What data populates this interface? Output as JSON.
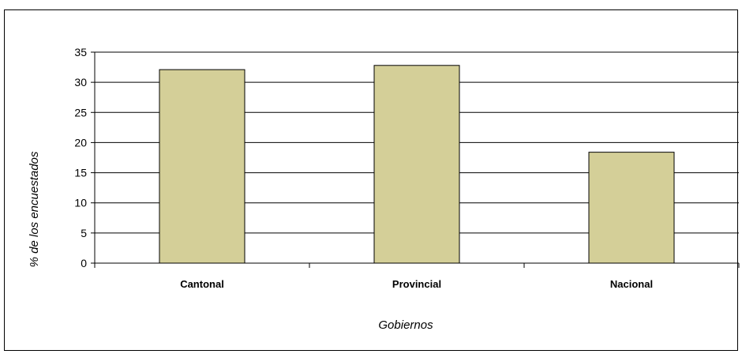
{
  "chart_data": {
    "type": "bar",
    "categories": [
      "Cantonal",
      "Provincial",
      "Nacional"
    ],
    "values": [
      32.1,
      32.8,
      18.4
    ],
    "title": "",
    "xlabel": "Gobiernos",
    "ylabel": "% de los encuestados",
    "ylim": [
      0,
      35
    ],
    "yticks": [
      "0",
      "5",
      "10",
      "15",
      "20",
      "25",
      "30",
      "35"
    ],
    "grid": true,
    "legend": "none",
    "bar_color": "#d4cf98",
    "bar_edge_color": "#000000"
  }
}
